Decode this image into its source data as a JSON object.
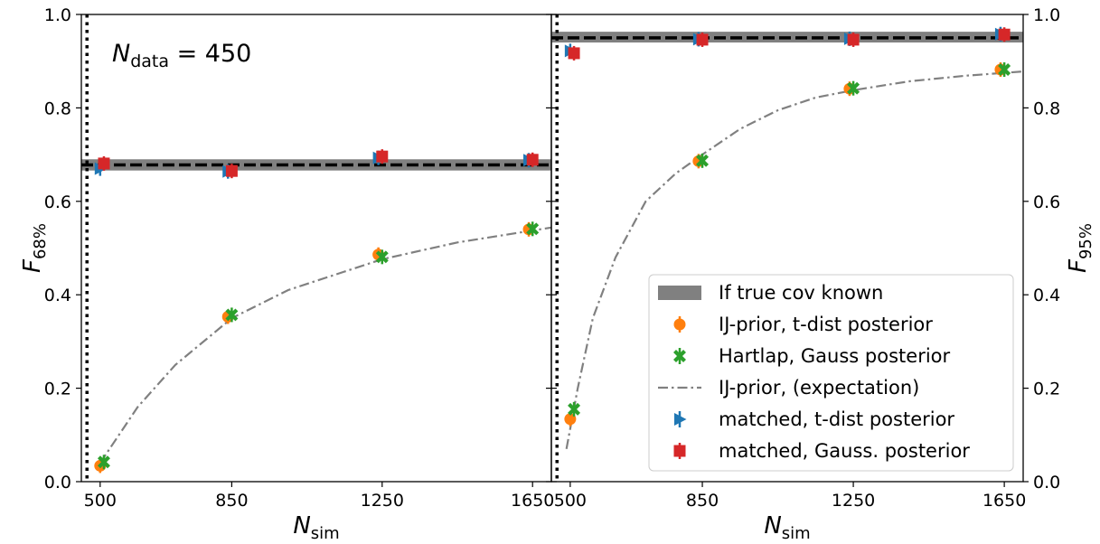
{
  "colors": {
    "band": "#808080",
    "ij_prior": "#ff7f0e",
    "hartlap": "#2ca02c",
    "expectation": "#808080",
    "matched_t": "#1f77b4",
    "matched_gauss": "#d62728",
    "reference": "#000000"
  },
  "annotation": {
    "N_main": "N",
    "N_sub": "data",
    "N_value": " = 450"
  },
  "chart_data": [
    {
      "type": "scatter",
      "panel": "left",
      "xlabel": "N",
      "xlabel_sub": "sim",
      "ylabel": "F",
      "ylabel_sub": "68%",
      "xlim": [
        450,
        1700
      ],
      "ylim": [
        0.0,
        1.0
      ],
      "xticks": [
        500,
        850,
        1250,
        1650
      ],
      "yticks": [
        "0.0",
        "0.2",
        "0.4",
        "0.6",
        "0.8",
        "1.0"
      ],
      "ytick_side": "left",
      "vline_x": 465,
      "hline_y": 0.678,
      "band": [
        0.666,
        0.69
      ],
      "series": [
        {
          "name": "IJ-prior, t-dist posterior",
          "key": "ij_prior",
          "marker": "circle",
          "x": [
            500,
            840,
            1240,
            1640
          ],
          "y": [
            0.034,
            0.353,
            0.486,
            0.54
          ]
        },
        {
          "name": "Hartlap, Gauss posterior",
          "key": "hartlap",
          "marker": "x",
          "x": [
            510,
            850,
            1250,
            1650
          ],
          "y": [
            0.042,
            0.357,
            0.481,
            0.541
          ]
        },
        {
          "name": "matched, t-dist posterior",
          "key": "matched_t",
          "marker": "triangle",
          "x": [
            500,
            840,
            1240,
            1640
          ],
          "y": [
            0.67,
            0.664,
            0.693,
            0.688
          ]
        },
        {
          "name": "matched, Gauss. posterior",
          "key": "matched_gauss",
          "marker": "square",
          "x": [
            510,
            850,
            1250,
            1650
          ],
          "y": [
            0.681,
            0.665,
            0.696,
            0.689
          ]
        }
      ],
      "expectation_curve": {
        "x": [
          500,
          600,
          700,
          850,
          1000,
          1250,
          1450,
          1700
        ],
        "y": [
          0.04,
          0.16,
          0.25,
          0.35,
          0.41,
          0.476,
          0.512,
          0.544
        ]
      }
    },
    {
      "type": "scatter",
      "panel": "right",
      "xlabel": "N",
      "xlabel_sub": "sim",
      "ylabel": "F",
      "ylabel_sub": "95%",
      "xlim": [
        450,
        1700
      ],
      "ylim": [
        0.0,
        1.0
      ],
      "xticks": [
        500,
        850,
        1250,
        1650
      ],
      "yticks": [
        "0.0",
        "0.2",
        "0.4",
        "0.6",
        "0.8",
        "1.0"
      ],
      "ytick_side": "right",
      "vline_x": 465,
      "hline_y": 0.95,
      "band": [
        0.94,
        0.963
      ],
      "series": [
        {
          "name": "IJ-prior, t-dist posterior",
          "key": "ij_prior",
          "marker": "circle",
          "x": [
            500,
            840,
            1240,
            1640
          ],
          "y": [
            0.134,
            0.686,
            0.841,
            0.882
          ]
        },
        {
          "name": "Hartlap, Gauss posterior",
          "key": "hartlap",
          "marker": "x",
          "x": [
            510,
            850,
            1250,
            1650
          ],
          "y": [
            0.155,
            0.687,
            0.842,
            0.882
          ]
        },
        {
          "name": "matched, t-dist posterior",
          "key": "matched_t",
          "marker": "triangle",
          "x": [
            500,
            840,
            1240,
            1640
          ],
          "y": [
            0.922,
            0.947,
            0.948,
            0.958
          ]
        },
        {
          "name": "matched, Gauss. posterior",
          "key": "matched_gauss",
          "marker": "square",
          "x": [
            510,
            850,
            1250,
            1650
          ],
          "y": [
            0.917,
            0.946,
            0.946,
            0.957
          ]
        }
      ],
      "expectation_curve": {
        "x": [
          490,
          520,
          560,
          620,
          700,
          780,
          850,
          950,
          1050,
          1150,
          1250,
          1400,
          1550,
          1700
        ],
        "y": [
          0.07,
          0.2,
          0.35,
          0.48,
          0.6,
          0.66,
          0.7,
          0.755,
          0.795,
          0.822,
          0.838,
          0.857,
          0.869,
          0.878
        ]
      }
    }
  ],
  "legend": {
    "placement": "lower-right of right panel",
    "entries": [
      {
        "label": "If true cov known",
        "key": "band",
        "marker": "band"
      },
      {
        "label": "IJ-prior, t-dist posterior",
        "key": "ij_prior",
        "marker": "circle"
      },
      {
        "label": "Hartlap, Gauss posterior",
        "key": "hartlap",
        "marker": "x"
      },
      {
        "label": "IJ-prior, (expectation)",
        "key": "expectation",
        "marker": "dashdot"
      },
      {
        "label": "matched, t-dist posterior",
        "key": "matched_t",
        "marker": "triangle"
      },
      {
        "label": "matched, Gauss. posterior",
        "key": "matched_gauss",
        "marker": "square"
      }
    ]
  }
}
